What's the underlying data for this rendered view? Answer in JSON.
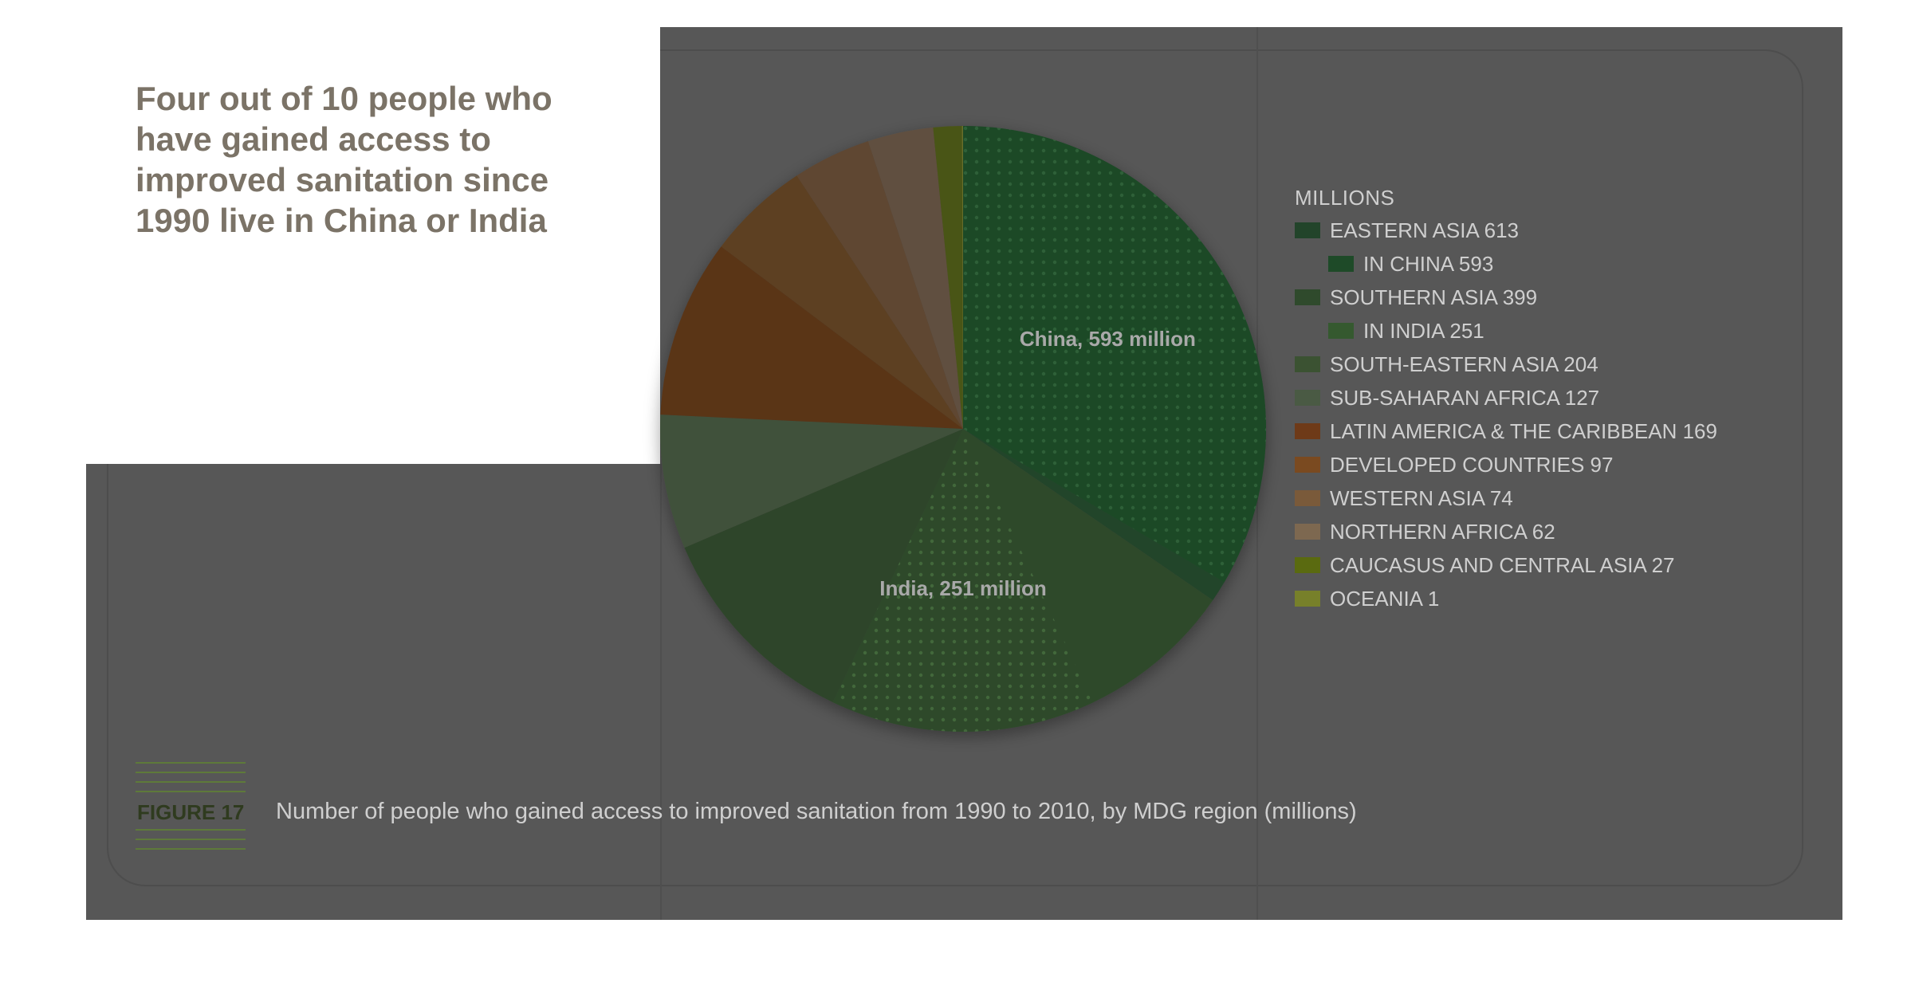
{
  "headline": "Four out of 10 people who have gained access to improved sanitation since 1990 live in China or India",
  "figure": {
    "label": "FIGURE 17",
    "caption": "Number of people who gained access to improved sanitation from 1990 to 2010, by MDG region (millions)"
  },
  "chart_data": {
    "type": "pie",
    "legend_title": "MILLIONS",
    "legend_placement": "right",
    "slices": [
      {
        "name": "EASTERN ASIA",
        "value": 613,
        "color": "#22442a"
      },
      {
        "name": "SOUTHERN ASIA",
        "value": 399,
        "color": "#2f4a2c"
      },
      {
        "name": "SOUTH-EASTERN ASIA",
        "value": 204,
        "color": "#2f452b"
      },
      {
        "name": "SUB-SAHARAN AFRICA",
        "value": 127,
        "color": "#41513b"
      },
      {
        "name": "LATIN AMERICA & THE CARIBBEAN",
        "value": 169,
        "color": "#5a3419"
      },
      {
        "name": "DEVELOPED COUNTRIES",
        "value": 97,
        "color": "#5d3f20"
      },
      {
        "name": "WESTERN ASIA",
        "value": 74,
        "color": "#5f4630"
      },
      {
        "name": "NORTHERN AFRICA",
        "value": 62,
        "color": "#605040"
      },
      {
        "name": "CAUCASUS AND CENTRAL ASIA",
        "value": 27,
        "color": "#4a5516"
      },
      {
        "name": "OCEANIA",
        "value": 1,
        "color": "#6a702a"
      }
    ],
    "sub_slices": [
      {
        "name": "IN CHINA",
        "parent": "EASTERN ASIA",
        "value": 593,
        "color": "#1e4a28",
        "label": "China, 593 million"
      },
      {
        "name": "IN INDIA",
        "parent": "SOUTHERN ASIA",
        "value": 251,
        "color": "#35592f",
        "label": "India, 251 million"
      }
    ],
    "legend": [
      {
        "text": "EASTERN ASIA 613",
        "color": "#22442a",
        "indent": false
      },
      {
        "text": "IN CHINA 593",
        "color": "#1e4a28",
        "indent": true
      },
      {
        "text": "SOUTHERN ASIA 399",
        "color": "#2f4a2c",
        "indent": false
      },
      {
        "text": "IN INDIA 251",
        "color": "#35592f",
        "indent": true
      },
      {
        "text": "SOUTH-EASTERN ASIA 204",
        "color": "#3b5232",
        "indent": false
      },
      {
        "text": "SUB-SAHARAN AFRICA 127",
        "color": "#4a5a44",
        "indent": false
      },
      {
        "text": "LATIN AMERICA & THE CARIBBEAN 169",
        "color": "#6e3a18",
        "indent": false
      },
      {
        "text": "DEVELOPED COUNTRIES 97",
        "color": "#7a4a20",
        "indent": false
      },
      {
        "text": "WESTERN ASIA 74",
        "color": "#7a5a3a",
        "indent": false
      },
      {
        "text": "NORTHERN AFRICA 62",
        "color": "#7d6850",
        "indent": false
      },
      {
        "text": "CAUCASUS AND CENTRAL ASIA 27",
        "color": "#5a6a10",
        "indent": false
      },
      {
        "text": "OCEANIA 1",
        "color": "#77802a",
        "indent": false
      }
    ]
  }
}
